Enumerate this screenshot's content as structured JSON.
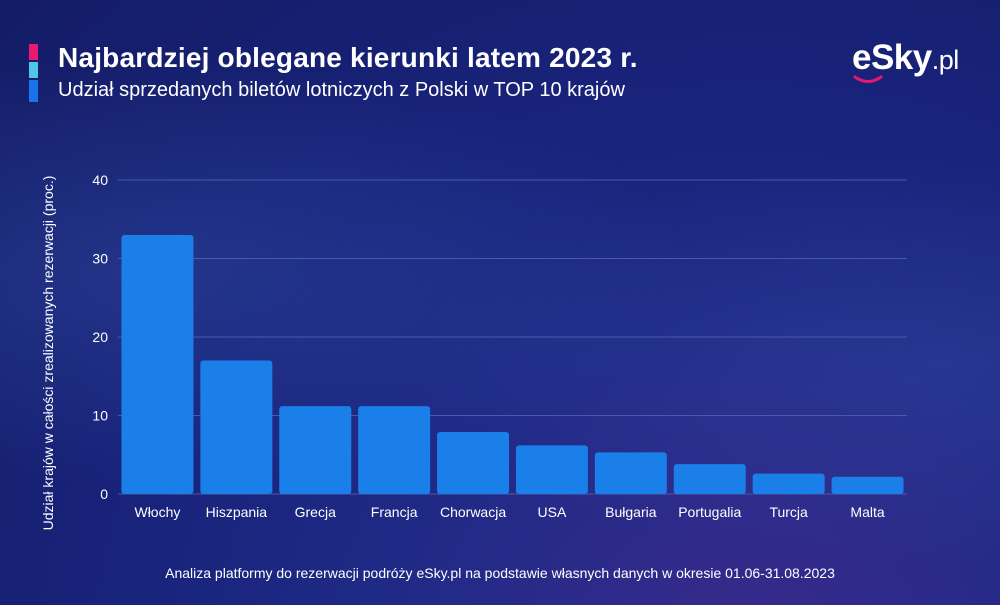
{
  "header": {
    "title": "Najbardziej oblegane kierunki latem 2023 r.",
    "subtitle": "Udział sprzedanych biletów lotniczych z Polski w TOP 10 krajów",
    "logo_main": "eSky",
    "logo_tld": ".pl"
  },
  "footnote": "Analiza platformy do rezerwacji podróży eSky.pl na podstawie własnych danych w okresie 01.06-31.08.2023",
  "colors": {
    "bar": "#1a7fe8",
    "accent_pink": "#e8196e",
    "accent_cyan": "#4fc6e8",
    "accent_blue": "#1a73e8",
    "gridline": "#4a5aa8"
  },
  "chart_data": {
    "type": "bar",
    "title": "",
    "xlabel": "",
    "ylabel": "Udział krajów w całości zrealizowanych rezerwacji (proc.)",
    "categories": [
      "Włochy",
      "Hiszpania",
      "Grecja",
      "Francja",
      "Chorwacja",
      "USA",
      "Bułgaria",
      "Portugalia",
      "Turcja",
      "Malta"
    ],
    "values": [
      33,
      17,
      11.2,
      11.2,
      7.9,
      6.2,
      5.3,
      3.8,
      2.6,
      2.2
    ],
    "ylim": [
      0,
      40
    ],
    "yticks": [
      0,
      10,
      20,
      30,
      40
    ],
    "grid": true,
    "legend": "none"
  }
}
